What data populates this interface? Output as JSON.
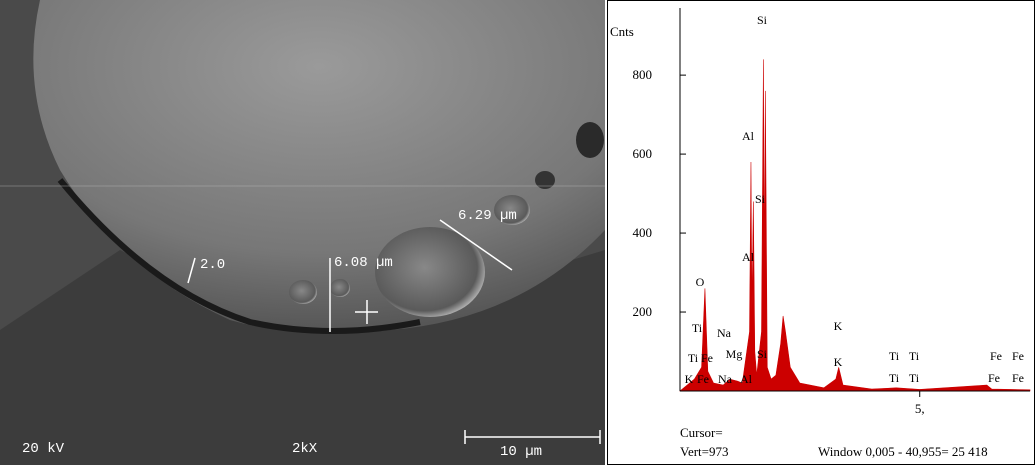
{
  "image": {
    "voltage": "20 kV",
    "magnification": "2kX",
    "scale_bar": "10 µm",
    "measurements": [
      "6.29 µm",
      "6.08 µm",
      "2.0"
    ]
  },
  "chart_data": {
    "type": "area",
    "y_label": "Cnts",
    "color": "#cc0000",
    "x": [
      0,
      0.2,
      0.3,
      0.45,
      0.52,
      0.58,
      0.7,
      0.9,
      1.04,
      1.2,
      1.3,
      1.45,
      1.48,
      1.5,
      1.53,
      1.56,
      1.6,
      1.7,
      1.74,
      1.76,
      1.78,
      1.82,
      1.9,
      2.0,
      2.1,
      2.15,
      2.2,
      2.3,
      2.5,
      3.0,
      3.25,
      3.31,
      3.4,
      4.0,
      4.51,
      5.0,
      6.4,
      6.5,
      7.3
    ],
    "values": [
      0,
      20,
      30,
      60,
      260,
      50,
      20,
      15,
      30,
      25,
      20,
      150,
      580,
      200,
      480,
      100,
      40,
      150,
      840,
      300,
      760,
      60,
      30,
      40,
      120,
      190,
      150,
      60,
      20,
      8,
      30,
      60,
      15,
      5,
      8,
      4,
      15,
      5,
      3
    ],
    "xlim": [
      0,
      7.3
    ],
    "ylim": [
      0,
      970
    ],
    "xticks": [
      {
        "value": 5,
        "label": "5,"
      }
    ],
    "yticks": [
      200,
      400,
      600,
      800
    ],
    "annotations": [
      "Si",
      "Al",
      "Si",
      "Al",
      "O",
      "Ti",
      "Na",
      "K",
      "Ti",
      "Fe",
      "Mg",
      "Si",
      "K",
      "Ti",
      "Ti",
      "Fe",
      "Fe",
      "K",
      "Fe",
      "Na",
      "Al",
      "Ti",
      "Ti",
      "Fe",
      "Fe"
    ],
    "cursor": "Cursor=",
    "vert": "Vert=973",
    "window": "Window 0,005 - 40,955=  25 418"
  }
}
